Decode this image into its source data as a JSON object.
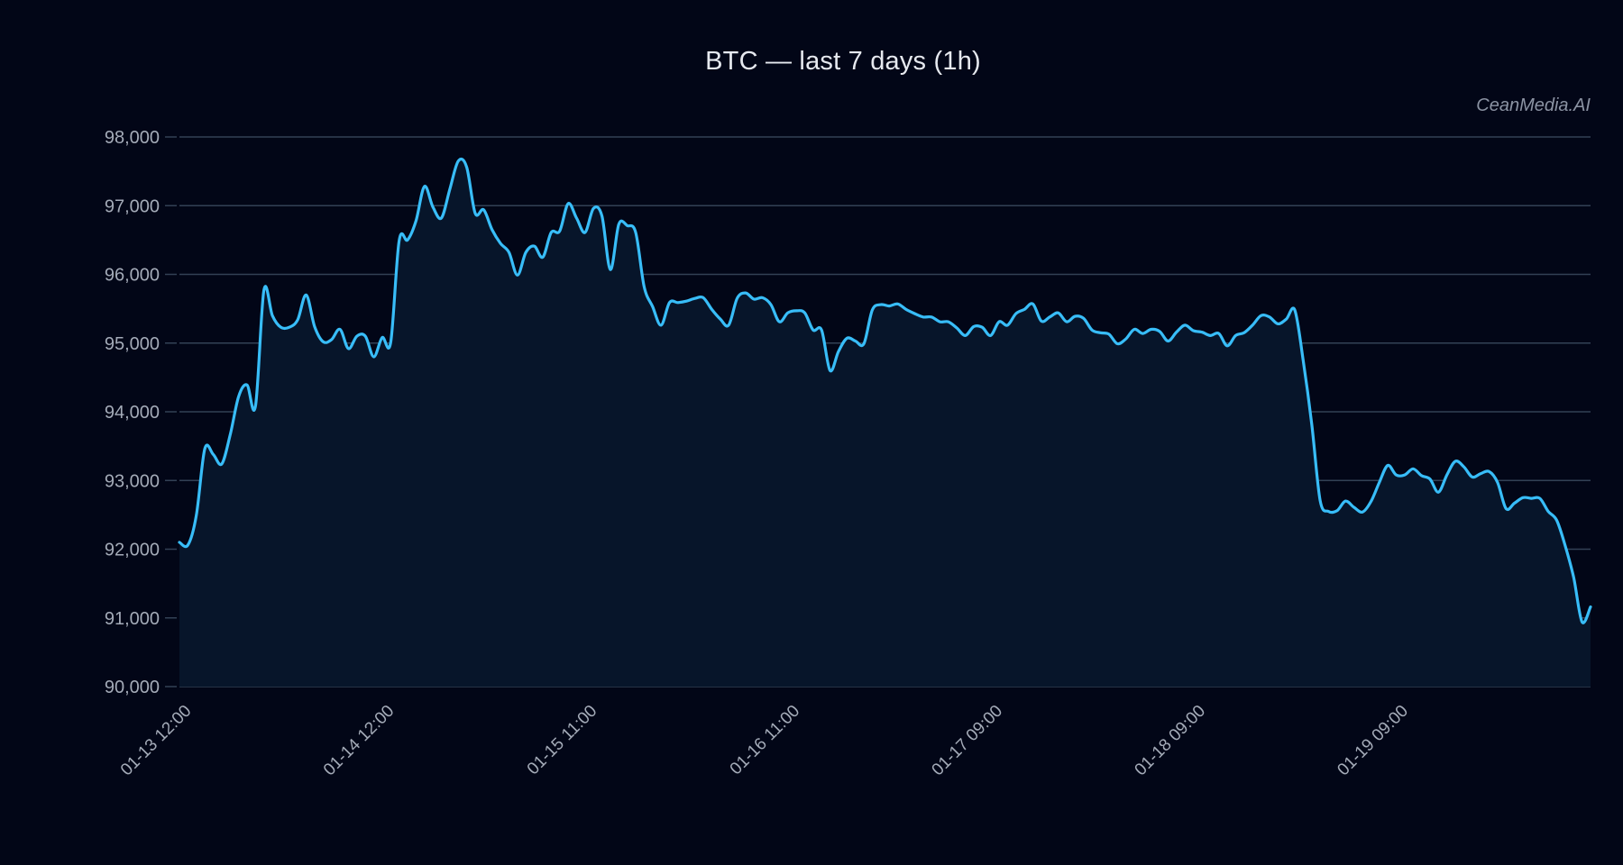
{
  "header": {
    "title": "BTC — last 7 days (1h)",
    "watermark": "CeanMedia.AI"
  },
  "colors": {
    "background": "#020617",
    "plot_fill": "#07152a",
    "line": "#38bdf8",
    "grid": "#334155",
    "tick_text": "#a4abb8"
  },
  "chart_data": {
    "type": "area",
    "title": "BTC — last 7 days (1h)",
    "xlabel": "",
    "ylabel": "",
    "ylim": [
      90000,
      98000
    ],
    "yticks": [
      90000,
      91000,
      92000,
      93000,
      94000,
      95000,
      96000,
      97000,
      98000
    ],
    "ytick_labels": [
      "90,000",
      "91,000",
      "92,000",
      "93,000",
      "94,000",
      "95,000",
      "96,000",
      "97,000",
      "98,000"
    ],
    "xtick_labels": [
      "01-13 12:00",
      "01-14 12:00",
      "01-15 11:00",
      "01-16 11:00",
      "01-17 09:00",
      "01-18 09:00",
      "01-19 09:00"
    ],
    "xtick_index": [
      0,
      24,
      48,
      72,
      96,
      120,
      144
    ],
    "grid": true,
    "legend": null,
    "interval": "1h",
    "series": [
      {
        "name": "BTC",
        "values": [
          92100,
          92060,
          92490,
          93460,
          93380,
          93240,
          93660,
          94220,
          94390,
          94080,
          95770,
          95400,
          95230,
          95230,
          95340,
          95700,
          95240,
          95020,
          95050,
          95200,
          94920,
          95100,
          95100,
          94800,
          95080,
          95010,
          96490,
          96500,
          96780,
          97280,
          96980,
          96820,
          97240,
          97650,
          97560,
          96890,
          96940,
          96650,
          96450,
          96320,
          95990,
          96320,
          96410,
          96250,
          96610,
          96630,
          97030,
          96820,
          96610,
          96960,
          96850,
          96070,
          96730,
          96710,
          96610,
          95820,
          95530,
          95260,
          95590,
          95590,
          95610,
          95650,
          95660,
          95490,
          95350,
          95260,
          95650,
          95730,
          95640,
          95660,
          95560,
          95310,
          95440,
          95470,
          95440,
          95190,
          95190,
          94600,
          94880,
          95070,
          95030,
          94990,
          95480,
          95560,
          95540,
          95570,
          95490,
          95430,
          95380,
          95380,
          95310,
          95310,
          95220,
          95110,
          95240,
          95230,
          95110,
          95310,
          95260,
          95430,
          95490,
          95570,
          95320,
          95380,
          95440,
          95310,
          95390,
          95360,
          95190,
          95150,
          95130,
          94990,
          95060,
          95200,
          95140,
          95200,
          95170,
          95030,
          95160,
          95260,
          95180,
          95160,
          95110,
          95140,
          94960,
          95110,
          95150,
          95260,
          95400,
          95380,
          95280,
          95350,
          95480,
          94740,
          93830,
          92710,
          92550,
          92560,
          92700,
          92610,
          92540,
          92690,
          92970,
          93220,
          93080,
          93080,
          93170,
          93070,
          93020,
          92830,
          93080,
          93280,
          93200,
          93050,
          93100,
          93130,
          92970,
          92590,
          92670,
          92750,
          92740,
          92740,
          92550,
          92420,
          92050,
          91590,
          90940,
          91160
        ]
      }
    ]
  }
}
